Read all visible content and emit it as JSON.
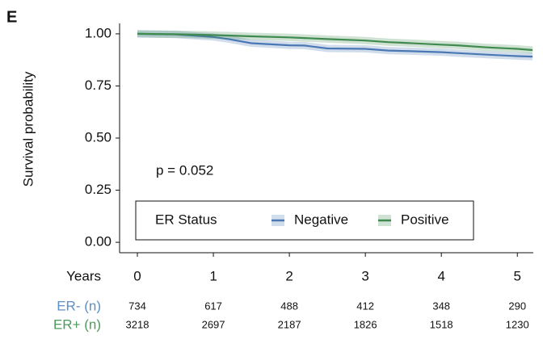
{
  "chart_data": {
    "type": "line",
    "panel_label": "E",
    "y_label": "Survival probability",
    "x_label": "Years",
    "annotation": "p = 0.052",
    "legend_title": "ER Status",
    "x": [
      0,
      0.5,
      1,
      1.2,
      1.5,
      2,
      2.2,
      2.5,
      3,
      3.3,
      3.5,
      4,
      4.2,
      4.6,
      5,
      5.2
    ],
    "series": [
      {
        "name": "Negative",
        "color": "#4a78b5",
        "values": [
          1,
          0.997,
          0.985,
          0.975,
          0.955,
          0.945,
          0.944,
          0.93,
          0.928,
          0.92,
          0.918,
          0.912,
          0.908,
          0.9,
          0.893,
          0.891
        ]
      },
      {
        "name": "Positive",
        "color": "#3f8a4f",
        "values": [
          1,
          0.998,
          0.994,
          0.992,
          0.988,
          0.983,
          0.98,
          0.975,
          0.968,
          0.96,
          0.957,
          0.948,
          0.945,
          0.935,
          0.928,
          0.922
        ]
      }
    ],
    "xlim": [
      -0.234,
      5.21
    ],
    "ylim": [
      -0.05,
      1.05
    ],
    "xticks": [
      0,
      1,
      2,
      3,
      4,
      5
    ],
    "yticks": [
      {
        "value": 0,
        "label": "0.00"
      },
      {
        "value": 0.25,
        "label": "0.25"
      },
      {
        "value": 0.5,
        "label": "0.50"
      },
      {
        "value": 0.75,
        "label": "0.75"
      },
      {
        "value": 1,
        "label": "1.00"
      }
    ],
    "grid": false,
    "risk_table": {
      "rows": [
        {
          "label": "ER- (n)",
          "color": "#5b8fc7",
          "values": [
            734,
            617,
            488,
            412,
            348,
            290
          ]
        },
        {
          "label": "ER+ (n)",
          "color": "#4d9a5a",
          "values": [
            3218,
            2697,
            2187,
            1826,
            1518,
            1230
          ]
        }
      ]
    }
  }
}
